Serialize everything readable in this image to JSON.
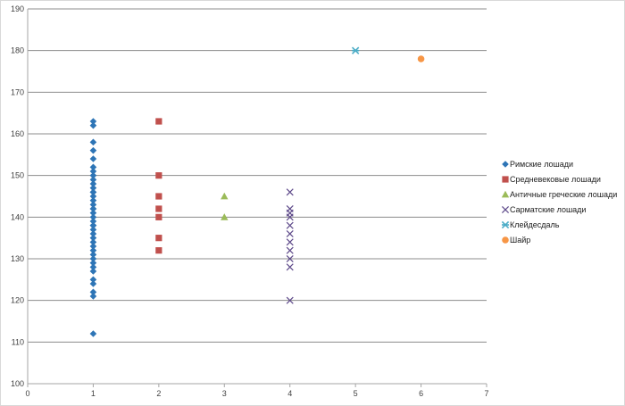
{
  "chart_data": {
    "type": "scatter",
    "title": "",
    "xlabel": "",
    "ylabel": "",
    "xlim": [
      0,
      7
    ],
    "ylim": [
      100,
      190
    ],
    "x_ticks": [
      "0",
      "1",
      "2",
      "3",
      "4",
      "5",
      "6",
      "7"
    ],
    "y_ticks": [
      "100",
      "110",
      "120",
      "130",
      "140",
      "150",
      "160",
      "170",
      "180",
      "190"
    ],
    "grid": "horizontal",
    "legend_position": "right",
    "series": [
      {
        "name": "Римские лошади",
        "marker": "diamond",
        "color": "#2e75b6",
        "x": [
          1,
          1,
          1,
          1,
          1,
          1,
          1,
          1,
          1,
          1,
          1,
          1,
          1,
          1,
          1,
          1,
          1,
          1,
          1,
          1,
          1,
          1,
          1,
          1,
          1,
          1,
          1,
          1,
          1,
          1,
          1,
          1,
          1,
          1,
          1,
          1,
          1,
          1,
          1
        ],
        "y": [
          163,
          162,
          158,
          156,
          154,
          152,
          151,
          150,
          149,
          148,
          147,
          146,
          145,
          144,
          143,
          142,
          141,
          140,
          139,
          138,
          137,
          136,
          135,
          134,
          133,
          132,
          131,
          130,
          129,
          128,
          127,
          125,
          124,
          122,
          121,
          112,
          146,
          142,
          138
        ]
      },
      {
        "name": "Средневековые лошади",
        "marker": "square",
        "color": "#c0504d",
        "x": [
          2,
          2,
          2,
          2,
          2,
          2,
          2
        ],
        "y": [
          163,
          150,
          145,
          142,
          140,
          135,
          132
        ]
      },
      {
        "name": "Античные греческие лошади",
        "marker": "triangle",
        "color": "#9bbb59",
        "x": [
          3,
          3
        ],
        "y": [
          145,
          140
        ]
      },
      {
        "name": "Сарматские лошади",
        "marker": "x",
        "color": "#5f4b8b",
        "x": [
          4,
          4,
          4,
          4,
          4,
          4,
          4,
          4,
          4,
          4,
          4
        ],
        "y": [
          146,
          142,
          141,
          140,
          138,
          136,
          134,
          132,
          130,
          128,
          120
        ]
      },
      {
        "name": "Клейдесдаль",
        "marker": "star",
        "color": "#4bacc6",
        "x": [
          5
        ],
        "y": [
          180
        ]
      },
      {
        "name": "Шайр",
        "marker": "circle",
        "color": "#f79646",
        "x": [
          6
        ],
        "y": [
          178
        ]
      }
    ]
  }
}
